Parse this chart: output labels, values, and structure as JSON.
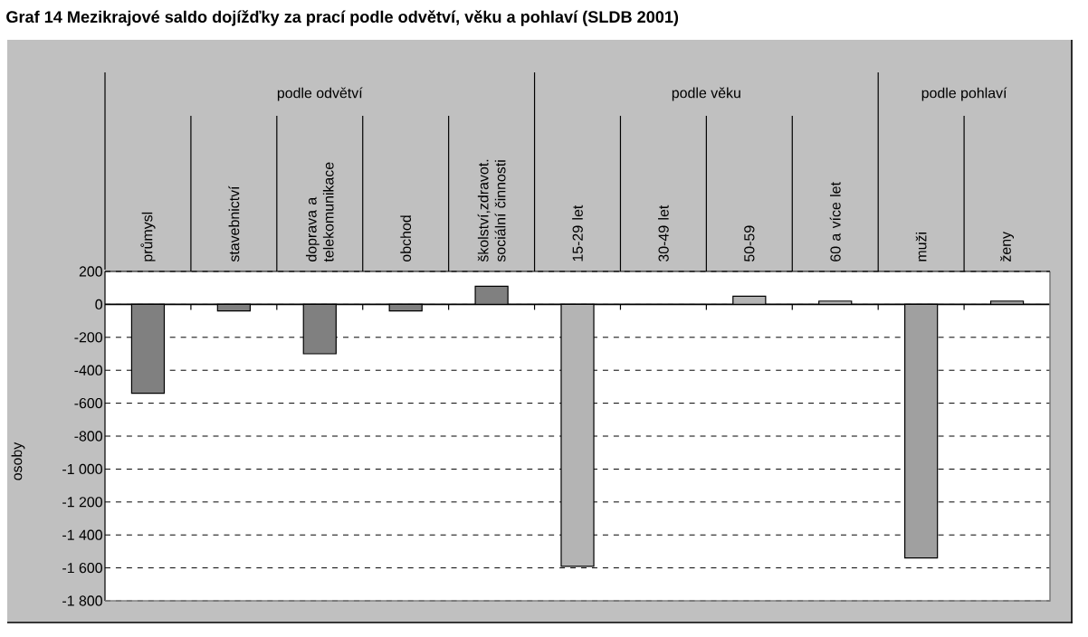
{
  "chart_data": {
    "type": "bar",
    "title": "Graf 14 Mezikrajové saldo dojížďky za prací podle odvětví, věku a pohlaví (SLDB 2001)",
    "ylabel": "osoby",
    "categories": [
      "průmysl",
      "stavebnictví",
      "doprava a telekomunikace",
      "obchod",
      "školství,zdravot. sociální činnosti",
      "15-29 let",
      "30-49 let",
      "50-59",
      "60 a více let",
      "muži",
      "ženy"
    ],
    "values": [
      -540,
      -40,
      -300,
      -40,
      110,
      -1590,
      null,
      50,
      20,
      -1540,
      20
    ],
    "colors": [
      "#808080",
      "#808080",
      "#808080",
      "#808080",
      "#808080",
      "#b4b4b4",
      "#b4b4b4",
      "#b4b4b4",
      "#b4b4b4",
      "#a0a0a0",
      "#a0a0a0"
    ],
    "annotations": [
      "podle odvětví",
      "podle věku",
      "podle pohlaví"
    ],
    "ylim": [
      -1800,
      200
    ],
    "yticks": [
      {
        "value": -1800,
        "label": "-1 800"
      },
      {
        "value": -1600,
        "label": "-1 600"
      },
      {
        "value": -1400,
        "label": "-1 400"
      },
      {
        "value": -1200,
        "label": "-1 200"
      },
      {
        "value": -1000,
        "label": "-1 000"
      },
      -800,
      -600,
      -400,
      -200,
      0,
      200
    ],
    "grid": "y"
  }
}
